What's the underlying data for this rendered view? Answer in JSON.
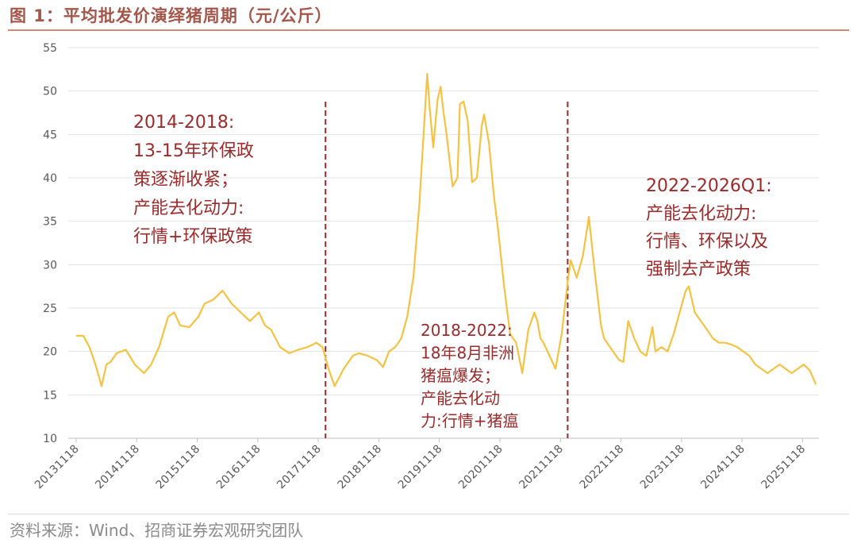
{
  "figure": {
    "title": "图 1：平均批发价演绎猪周期（元/公斤）",
    "source": "资料来源：Wind、招商证券宏观研究团队"
  },
  "colors": {
    "line": "#f5c242",
    "annotation": "#9b2b2b",
    "divider": "#9b2b2b",
    "grid": "#e3e3e3",
    "axis_text": "#595959"
  },
  "chart_data": {
    "type": "line",
    "title": "平均批发价演绎猪周期（元/公斤）",
    "xlabel": "",
    "ylabel": "元/公斤",
    "ylim": [
      10,
      55
    ],
    "yticks": [
      10,
      15,
      20,
      25,
      30,
      35,
      40,
      45,
      50,
      55
    ],
    "x_tick_labels": [
      "20131118",
      "20141118",
      "20151118",
      "20161118",
      "20171118",
      "20181118",
      "20191118",
      "20201118",
      "20211118",
      "20221118",
      "20231118",
      "20241118",
      "20251118"
    ],
    "grid": true,
    "series": [
      {
        "name": "平均批发价",
        "x": [
          2013.88,
          2014.0,
          2014.1,
          2014.2,
          2014.3,
          2014.38,
          2014.45,
          2014.55,
          2014.7,
          2014.85,
          2015.0,
          2015.12,
          2015.25,
          2015.4,
          2015.5,
          2015.6,
          2015.75,
          2015.9,
          2016.0,
          2016.15,
          2016.3,
          2016.45,
          2016.6,
          2016.75,
          2016.9,
          2017.0,
          2017.1,
          2017.25,
          2017.4,
          2017.55,
          2017.7,
          2017.85,
          2017.95,
          2018.05,
          2018.15,
          2018.3,
          2018.45,
          2018.55,
          2018.7,
          2018.85,
          2018.95,
          2019.05,
          2019.15,
          2019.25,
          2019.35,
          2019.45,
          2019.55,
          2019.62,
          2019.68,
          2019.72,
          2019.78,
          2019.85,
          2019.9,
          2019.95,
          2020.0,
          2020.1,
          2020.18,
          2020.22,
          2020.28,
          2020.35,
          2020.42,
          2020.5,
          2020.58,
          2020.62,
          2020.7,
          2020.78,
          2020.85,
          2020.95,
          2021.05,
          2021.15,
          2021.25,
          2021.35,
          2021.45,
          2021.5,
          2021.55,
          2021.6,
          2021.7,
          2021.8,
          2021.9,
          2022.0,
          2022.05,
          2022.15,
          2022.25,
          2022.35,
          2022.45,
          2022.55,
          2022.6,
          2022.7,
          2022.8,
          2022.85,
          2022.92,
          2023.0,
          2023.1,
          2023.2,
          2023.3,
          2023.4,
          2023.45,
          2023.55,
          2023.65,
          2023.75,
          2023.85,
          2023.95,
          2024.0,
          2024.1,
          2024.2,
          2024.3,
          2024.4,
          2024.5,
          2024.6,
          2024.7,
          2024.8,
          2024.9,
          2025.0,
          2025.1,
          2025.2,
          2025.3,
          2025.4,
          2025.5,
          2025.6,
          2025.7,
          2025.8,
          2025.9,
          2026.0,
          2026.1
        ],
        "values": [
          21.8,
          21.8,
          20.5,
          18.5,
          16.0,
          18.5,
          18.8,
          19.8,
          20.2,
          18.5,
          17.5,
          18.5,
          20.5,
          24.0,
          24.5,
          23.0,
          22.8,
          24.0,
          25.5,
          26.0,
          27.0,
          25.5,
          24.5,
          23.5,
          24.5,
          23.0,
          22.5,
          20.5,
          19.8,
          20.2,
          20.5,
          21.0,
          20.5,
          18.0,
          16.0,
          18.0,
          19.5,
          19.8,
          19.5,
          19.0,
          18.2,
          20.0,
          20.5,
          21.5,
          24.0,
          28.5,
          37.0,
          45.0,
          52.0,
          48.0,
          43.5,
          49.0,
          50.5,
          47.5,
          45.0,
          39.0,
          40.0,
          48.5,
          48.8,
          46.5,
          39.5,
          40.0,
          46.0,
          47.3,
          44.0,
          38.0,
          34.0,
          27.5,
          22.0,
          21.0,
          17.5,
          22.5,
          24.5,
          23.5,
          21.5,
          21.0,
          19.5,
          18.0,
          22.0,
          28.0,
          30.5,
          28.5,
          31.0,
          35.5,
          29.0,
          23.0,
          21.5,
          20.5,
          19.5,
          19.0,
          18.8,
          23.5,
          21.5,
          20.0,
          19.5,
          22.8,
          20.0,
          20.5,
          20.0,
          22.0,
          24.5,
          27.0,
          27.5,
          24.5,
          23.5,
          22.5,
          21.5,
          21.0,
          21.0,
          20.8,
          20.5,
          20.0,
          19.5,
          18.5,
          18.0,
          17.5,
          18.0,
          18.5,
          18.0,
          17.5,
          18.0,
          18.5,
          17.8,
          16.2
        ]
      }
    ],
    "dividers": [
      2018.0,
      2022.0
    ],
    "annotations": [
      {
        "id": "period-2014-2018",
        "lines": [
          "2014-2018:",
          "13-15年环保政",
          "策逐渐收紧；",
          "产能去化动力:",
          "行情+环保政策"
        ]
      },
      {
        "id": "period-2018-2022",
        "lines": [
          "2018-2022:",
          "18年8月非洲",
          "猪瘟爆发；",
          "产能去化动",
          "力:行情+猪瘟"
        ]
      },
      {
        "id": "period-2022-2026",
        "lines": [
          "2022-2026Q1:",
          "产能去化动力:",
          "行情、环保以及",
          "强制去产政策"
        ]
      }
    ]
  }
}
